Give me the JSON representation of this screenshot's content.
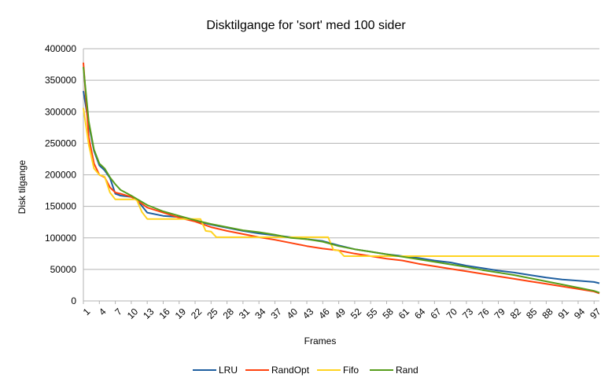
{
  "chart_data": {
    "type": "line",
    "title": "Disktilgange for 'sort' med 100 sider",
    "xlabel": "Frames",
    "ylabel": "Disk tilgange",
    "ylim": [
      0,
      400000
    ],
    "yticks": [
      0,
      50000,
      100000,
      150000,
      200000,
      250000,
      300000,
      350000,
      400000
    ],
    "xlim": [
      1,
      98
    ],
    "xticks": [
      1,
      4,
      7,
      10,
      13,
      16,
      19,
      22,
      25,
      28,
      31,
      34,
      37,
      40,
      43,
      46,
      49,
      52,
      55,
      58,
      61,
      64,
      67,
      70,
      73,
      76,
      79,
      82,
      85,
      88,
      91,
      94,
      97
    ],
    "grid": "horizontal",
    "legend": "bottom",
    "series": [
      {
        "name": "LRU",
        "color": "#1f5fa0",
        "points": [
          [
            1,
            333000
          ],
          [
            2,
            280000
          ],
          [
            3,
            238000
          ],
          [
            4,
            215000
          ],
          [
            5,
            207000
          ],
          [
            6,
            195000
          ],
          [
            7,
            170000
          ],
          [
            8,
            167000
          ],
          [
            10,
            165000
          ],
          [
            11,
            161000
          ],
          [
            13,
            140000
          ],
          [
            16,
            135000
          ],
          [
            19,
            133000
          ],
          [
            22,
            127000
          ],
          [
            25,
            121000
          ],
          [
            28,
            116000
          ],
          [
            31,
            111000
          ],
          [
            34,
            107000
          ],
          [
            37,
            104000
          ],
          [
            40,
            101000
          ],
          [
            43,
            98000
          ],
          [
            46,
            95000
          ],
          [
            49,
            88000
          ],
          [
            52,
            82000
          ],
          [
            55,
            78000
          ],
          [
            58,
            74000
          ],
          [
            61,
            71000
          ],
          [
            64,
            68000
          ],
          [
            67,
            64000
          ],
          [
            70,
            61000
          ],
          [
            73,
            56000
          ],
          [
            76,
            52000
          ],
          [
            79,
            48000
          ],
          [
            82,
            45000
          ],
          [
            85,
            41000
          ],
          [
            88,
            37000
          ],
          [
            91,
            34000
          ],
          [
            94,
            32000
          ],
          [
            97,
            30000
          ],
          [
            98,
            28000
          ]
        ]
      },
      {
        "name": "RandOpt",
        "color": "#ff420e",
        "points": [
          [
            1,
            378000
          ],
          [
            2,
            260000
          ],
          [
            3,
            218000
          ],
          [
            4,
            200000
          ],
          [
            5,
            196000
          ],
          [
            6,
            180000
          ],
          [
            7,
            172000
          ],
          [
            8,
            170000
          ],
          [
            10,
            165000
          ],
          [
            11,
            160000
          ],
          [
            13,
            148000
          ],
          [
            16,
            140000
          ],
          [
            19,
            132000
          ],
          [
            22,
            126000
          ],
          [
            25,
            117000
          ],
          [
            28,
            111000
          ],
          [
            31,
            106000
          ],
          [
            34,
            101000
          ],
          [
            37,
            97000
          ],
          [
            40,
            92000
          ],
          [
            43,
            87000
          ],
          [
            46,
            83000
          ],
          [
            49,
            80000
          ],
          [
            52,
            75000
          ],
          [
            55,
            71000
          ],
          [
            58,
            67000
          ],
          [
            61,
            64000
          ],
          [
            64,
            59000
          ],
          [
            67,
            55000
          ],
          [
            70,
            51000
          ],
          [
            73,
            47000
          ],
          [
            76,
            43000
          ],
          [
            79,
            39000
          ],
          [
            82,
            35000
          ],
          [
            85,
            31000
          ],
          [
            88,
            27000
          ],
          [
            91,
            23000
          ],
          [
            94,
            19000
          ],
          [
            97,
            15000
          ],
          [
            98,
            12000
          ]
        ]
      },
      {
        "name": "Fifo",
        "color": "#ffd320",
        "points": [
          [
            1,
            306000
          ],
          [
            2,
            248000
          ],
          [
            3,
            210000
          ],
          [
            4,
            200000
          ],
          [
            5,
            197000
          ],
          [
            6,
            172000
          ],
          [
            7,
            161000
          ],
          [
            8,
            161000
          ],
          [
            10,
            161000
          ],
          [
            11,
            161000
          ],
          [
            12,
            141000
          ],
          [
            13,
            130000
          ],
          [
            16,
            130000
          ],
          [
            19,
            130000
          ],
          [
            22,
            130000
          ],
          [
            23,
            130000
          ],
          [
            24,
            111000
          ],
          [
            25,
            110000
          ],
          [
            26,
            101000
          ],
          [
            28,
            101000
          ],
          [
            31,
            101000
          ],
          [
            34,
            101000
          ],
          [
            37,
            101000
          ],
          [
            40,
            101000
          ],
          [
            43,
            101000
          ],
          [
            46,
            101000
          ],
          [
            47,
            101000
          ],
          [
            48,
            81000
          ],
          [
            49,
            80000
          ],
          [
            50,
            71000
          ],
          [
            52,
            71000
          ],
          [
            55,
            71000
          ],
          [
            58,
            71000
          ],
          [
            61,
            71000
          ],
          [
            64,
            71000
          ],
          [
            67,
            71000
          ],
          [
            70,
            71000
          ],
          [
            73,
            71000
          ],
          [
            76,
            71000
          ],
          [
            79,
            71000
          ],
          [
            82,
            71000
          ],
          [
            85,
            71000
          ],
          [
            88,
            71000
          ],
          [
            91,
            71000
          ],
          [
            94,
            71000
          ],
          [
            97,
            71000
          ],
          [
            98,
            71000
          ]
        ]
      },
      {
        "name": "Rand",
        "color": "#579d1c",
        "points": [
          [
            1,
            371000
          ],
          [
            2,
            285000
          ],
          [
            3,
            240000
          ],
          [
            4,
            218000
          ],
          [
            5,
            210000
          ],
          [
            6,
            196000
          ],
          [
            7,
            185000
          ],
          [
            8,
            176000
          ],
          [
            10,
            167000
          ],
          [
            11,
            162000
          ],
          [
            13,
            152000
          ],
          [
            16,
            142000
          ],
          [
            19,
            135000
          ],
          [
            22,
            128000
          ],
          [
            25,
            122000
          ],
          [
            28,
            117000
          ],
          [
            31,
            112000
          ],
          [
            34,
            109000
          ],
          [
            37,
            105000
          ],
          [
            40,
            100000
          ],
          [
            43,
            98000
          ],
          [
            46,
            94000
          ],
          [
            49,
            87000
          ],
          [
            52,
            82000
          ],
          [
            55,
            78000
          ],
          [
            58,
            74000
          ],
          [
            61,
            70000
          ],
          [
            64,
            66000
          ],
          [
            67,
            62000
          ],
          [
            70,
            58000
          ],
          [
            73,
            54000
          ],
          [
            76,
            49000
          ],
          [
            79,
            45000
          ],
          [
            82,
            41000
          ],
          [
            85,
            36000
          ],
          [
            88,
            31000
          ],
          [
            91,
            26000
          ],
          [
            94,
            21000
          ],
          [
            97,
            16000
          ],
          [
            98,
            13000
          ]
        ]
      }
    ]
  }
}
